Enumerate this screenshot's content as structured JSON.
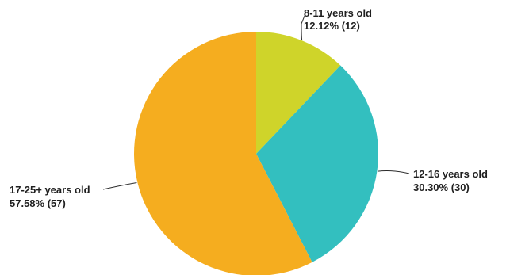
{
  "chart_data": {
    "type": "pie",
    "title": "",
    "slices": [
      {
        "label": "8-11 years old",
        "percent_text": "12.12% (12)",
        "value": 12,
        "color": "#cfd42a"
      },
      {
        "label": "12-16 years old",
        "percent_text": "30.30% (30)",
        "value": 30,
        "color": "#33bfbf"
      },
      {
        "label": "17-25+ years old",
        "percent_text": "57.58% (57)",
        "value": 57,
        "color": "#f5ad1f"
      }
    ],
    "start_angle": "12 o'clock",
    "direction": "clockwise"
  }
}
